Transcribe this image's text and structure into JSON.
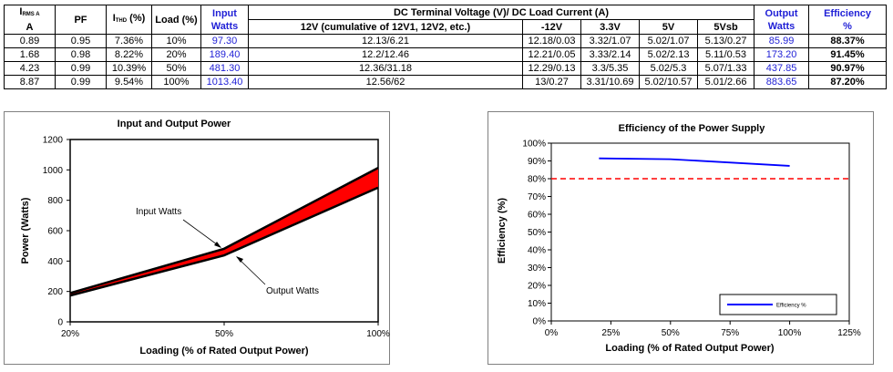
{
  "table": {
    "headers": {
      "irms_main": "I",
      "irms_sub": "RMS A",
      "irms_unit": "A",
      "pf": "PF",
      "ithd_main": "I",
      "ithd_sub": "THD",
      "ithd_rest": " (%)",
      "load": "Load (%)",
      "input_watts_1": "Input",
      "input_watts_2": "Watts",
      "dc_group": "DC Terminal Voltage (V)/ DC Load Current (A)",
      "col_12v": "12V (cumulative of 12V1, 12V2, etc.)",
      "col_m12v": "-12V",
      "col_3v3": "3.3V",
      "col_5v": "5V",
      "col_5vsb": "5Vsb",
      "output_watts_1": "Output",
      "output_watts_2": "Watts",
      "efficiency_1": "Efficiency",
      "efficiency_2": "%"
    },
    "rows": [
      {
        "irms": "0.89",
        "pf": "0.95",
        "ithd": "7.36%",
        "load": "10%",
        "input": "97.30",
        "v12": "12.13/6.21",
        "vm12": "12.18/0.03",
        "v3": "3.32/1.07",
        "v5": "5.02/1.07",
        "v5sb": "5.13/0.27",
        "output": "85.99",
        "eff": "88.37%"
      },
      {
        "irms": "1.68",
        "pf": "0.98",
        "ithd": "8.22%",
        "load": "20%",
        "input": "189.40",
        "v12": "12.2/12.46",
        "vm12": "12.21/0.05",
        "v3": "3.33/2.14",
        "v5": "5.02/2.13",
        "v5sb": "5.11/0.53",
        "output": "173.20",
        "eff": "91.45%"
      },
      {
        "irms": "4.23",
        "pf": "0.99",
        "ithd": "10.39%",
        "load": "50%",
        "input": "481.30",
        "v12": "12.36/31.18",
        "vm12": "12.29/0.13",
        "v3": "3.3/5.35",
        "v5": "5.02/5.3",
        "v5sb": "5.07/1.33",
        "output": "437.85",
        "eff": "90.97%"
      },
      {
        "irms": "8.87",
        "pf": "0.99",
        "ithd": "9.54%",
        "load": "100%",
        "input": "1013.40",
        "v12": "12.56/62",
        "vm12": "13/0.27",
        "v3": "3.31/10.69",
        "v5": "5.02/10.57",
        "v5sb": "5.01/2.66",
        "output": "883.65",
        "eff": "87.20%"
      }
    ]
  },
  "chart_data": [
    {
      "type": "area",
      "title": "Input and Output Power",
      "xlabel": "Loading (% of Rated Output Power)",
      "ylabel": "Power (Watts)",
      "x_tick_labels": [
        "20%",
        "50%",
        "100%"
      ],
      "y_tick_labels": [
        "0",
        "200",
        "400",
        "600",
        "800",
        "1000",
        "1200"
      ],
      "ylim": [
        0,
        1200
      ],
      "series": [
        {
          "name": "Input Watts",
          "values": [
            189.4,
            481.3,
            1013.4
          ]
        },
        {
          "name": "Output Watts",
          "values": [
            173.2,
            437.85,
            883.65
          ]
        }
      ],
      "annotations": [
        "Input Watts",
        "Output Watts"
      ],
      "colors": {
        "band": "#ff0000",
        "line": "#000000"
      },
      "grid": false
    },
    {
      "type": "line",
      "title": "Efficiency of the Power Supply",
      "xlabel": "Loading (% of Rated Output Power)",
      "ylabel": "Efficiency (%)",
      "x": [
        20,
        50,
        100
      ],
      "xlim": [
        0,
        125
      ],
      "ylim": [
        0,
        100
      ],
      "x_tick_labels": [
        "0%",
        "25%",
        "50%",
        "75%",
        "100%",
        "125%"
      ],
      "y_tick_labels": [
        "0%",
        "10%",
        "20%",
        "30%",
        "40%",
        "50%",
        "60%",
        "70%",
        "80%",
        "90%",
        "100%"
      ],
      "series": [
        {
          "name": "Efficiency %",
          "values": [
            91.45,
            90.97,
            87.2
          ]
        }
      ],
      "reference_line": {
        "y": 80,
        "style": "dashed",
        "color": "#ff0000"
      },
      "legend": "bottom-right",
      "colors": {
        "line": "#0000ff"
      },
      "grid": false
    }
  ]
}
